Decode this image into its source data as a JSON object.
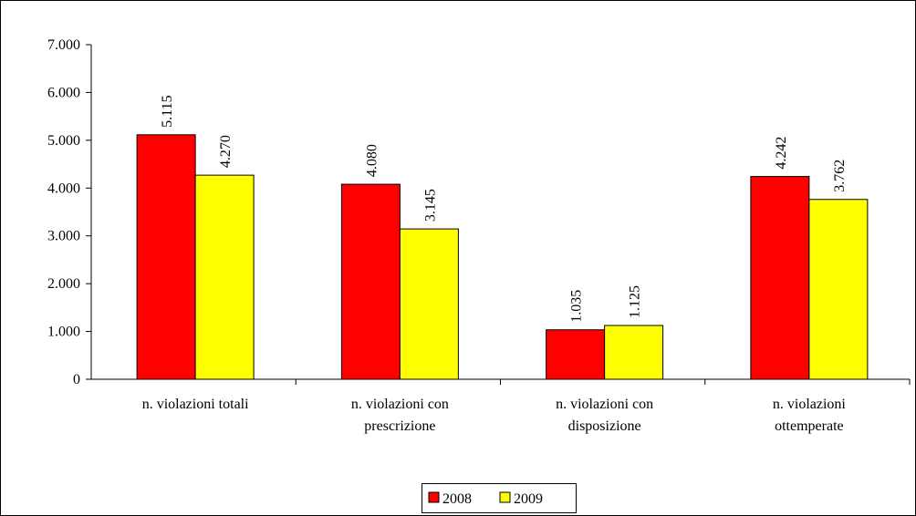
{
  "chart_data": {
    "type": "bar",
    "categories": [
      "n. violazioni totali",
      "n. violazioni con\nprescrizione",
      "n. violazioni con\ndisposizione",
      "n. violazioni\nottemperate"
    ],
    "series": [
      {
        "name": "2008",
        "color": "#ff0000",
        "values": [
          5115,
          4080,
          1035,
          4242
        ],
        "value_labels": [
          "5.115",
          "4.080",
          "1.035",
          "4.242"
        ]
      },
      {
        "name": "2009",
        "color": "#ffff00",
        "values": [
          4270,
          3145,
          1125,
          3762
        ],
        "value_labels": [
          "4.270",
          "3.145",
          "1.125",
          "3.762"
        ]
      }
    ],
    "ylim": [
      0,
      7000
    ],
    "yticks": [
      0,
      {
        "value": 1000,
        "label": "1.000"
      },
      {
        "value": 2000,
        "label": "2.000"
      },
      {
        "value": 3000,
        "label": "3.000"
      },
      {
        "value": 4000,
        "label": "4.000"
      },
      {
        "value": 5000,
        "label": "5.000"
      },
      {
        "value": 6000,
        "label": "6.000"
      },
      {
        "value": 7000,
        "label": "7.000"
      }
    ],
    "legend": "bottom"
  }
}
